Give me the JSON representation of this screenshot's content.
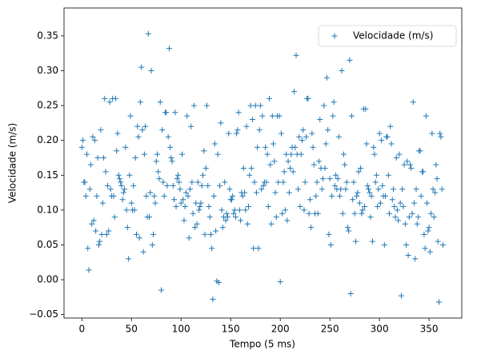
{
  "chart_data": {
    "type": "scatter",
    "xlabel": "Tempo (5 ms)",
    "ylabel": "Velocidade (m/s)",
    "legend": "upper right",
    "marker": "+",
    "xlim": [
      -18,
      383
    ],
    "ylim": [
      -0.055,
      0.39
    ],
    "xticks": [
      0,
      50,
      100,
      150,
      200,
      250,
      300,
      350
    ],
    "yticks": [
      {
        "value": -0.05,
        "label": "−0.05"
      },
      {
        "value": 0,
        "label": "0.00"
      },
      {
        "value": 0.05,
        "label": "0.05"
      },
      {
        "value": 0.1,
        "label": "0.10"
      },
      {
        "value": 0.15,
        "label": "0.15"
      },
      {
        "value": 0.2,
        "label": "0.20"
      },
      {
        "value": 0.25,
        "label": "0.25"
      },
      {
        "value": 0.3,
        "label": "0.30"
      },
      {
        "value": 0.35,
        "label": "0.35"
      }
    ],
    "series": [
      {
        "name": "Velocidade (m/s)",
        "color": "#1f77b4",
        "x": [
          0,
          1,
          2,
          3,
          4,
          5,
          6,
          7,
          8,
          9,
          10,
          11,
          12,
          13,
          14,
          15,
          16,
          17,
          18,
          19,
          20,
          21,
          22,
          23,
          24,
          25,
          26,
          27,
          28,
          29,
          30,
          31,
          32,
          33,
          34,
          35,
          36,
          37,
          38,
          39,
          40,
          41,
          42,
          43,
          44,
          45,
          46,
          47,
          48,
          49,
          50,
          51,
          52,
          53,
          54,
          55,
          56,
          57,
          58,
          59,
          60,
          61,
          62,
          63,
          64,
          65,
          66,
          67,
          68,
          69,
          70,
          71,
          72,
          73,
          74,
          75,
          76,
          77,
          78,
          79,
          80,
          81,
          82,
          83,
          84,
          85,
          86,
          87,
          88,
          89,
          90,
          91,
          92,
          93,
          94,
          95,
          96,
          97,
          98,
          99,
          100,
          101,
          102,
          103,
          104,
          105,
          106,
          107,
          108,
          109,
          110,
          111,
          112,
          113,
          114,
          115,
          116,
          117,
          118,
          119,
          120,
          121,
          122,
          123,
          124,
          125,
          126,
          127,
          128,
          129,
          130,
          131,
          132,
          133,
          134,
          135,
          136,
          137,
          138,
          139,
          140,
          141,
          142,
          143,
          144,
          145,
          146,
          147,
          148,
          149,
          150,
          151,
          152,
          153,
          154,
          155,
          156,
          157,
          158,
          159,
          160,
          161,
          162,
          163,
          164,
          165,
          166,
          167,
          168,
          169,
          170,
          171,
          172,
          173,
          174,
          175,
          176,
          177,
          178,
          179,
          180,
          181,
          182,
          183,
          184,
          185,
          186,
          187,
          188,
          189,
          190,
          191,
          192,
          193,
          194,
          195,
          196,
          197,
          198,
          199,
          200,
          201,
          202,
          203,
          204,
          205,
          206,
          207,
          208,
          209,
          210,
          211,
          212,
          213,
          214,
          215,
          216,
          217,
          218,
          219,
          220,
          221,
          222,
          223,
          224,
          225,
          226,
          227,
          228,
          229,
          230,
          231,
          232,
          233,
          234,
          235,
          236,
          237,
          238,
          239,
          240,
          241,
          242,
          243,
          244,
          245,
          246,
          247,
          248,
          249,
          250,
          251,
          252,
          253,
          254,
          255,
          256,
          257,
          258,
          259,
          260,
          261,
          262,
          263,
          264,
          265,
          266,
          267,
          268,
          269,
          270,
          271,
          272,
          273,
          274,
          275,
          276,
          277,
          278,
          279,
          280,
          281,
          282,
          283,
          284,
          285,
          286,
          287,
          288,
          289,
          290,
          291,
          292,
          293,
          294,
          295,
          296,
          297,
          298,
          299,
          300,
          301,
          302,
          303,
          304,
          305,
          306,
          307,
          308,
          309,
          310,
          311,
          312,
          313,
          314,
          315,
          316,
          317,
          318,
          319,
          320,
          321,
          322,
          323,
          324,
          325,
          326,
          327,
          328,
          329,
          330,
          331,
          332,
          333,
          334,
          335,
          336,
          337,
          338,
          339,
          340,
          341,
          342,
          343,
          344,
          345,
          346,
          347,
          348,
          349,
          350,
          351,
          352,
          353,
          354,
          355,
          356,
          357,
          358,
          359,
          360,
          361,
          362,
          363,
          364
        ],
        "values": [
          0.19,
          0.2,
          0.14,
          0.14,
          0.12,
          0.18,
          0.045,
          0.014,
          0.13,
          0.165,
          0.08,
          0.205,
          0.085,
          0.2,
          0.07,
          0.12,
          0.175,
          0.05,
          0.055,
          0.215,
          0.065,
          0.11,
          0.175,
          0.26,
          0.155,
          0.065,
          0.135,
          0.07,
          0.255,
          0.13,
          0.12,
          0.26,
          0.12,
          0.09,
          0.26,
          0.185,
          0.21,
          0.15,
          0.145,
          0.14,
          0.135,
          0.115,
          0.125,
          0.13,
          0.19,
          0.1,
          0.075,
          0.03,
          0.15,
          0.235,
          0.11,
          0.1,
          0.135,
          0.1,
          0.175,
          0.065,
          0.22,
          0.205,
          0.06,
          0.255,
          0.305,
          0.215,
          0.04,
          0.18,
          0.22,
          0.12,
          0.09,
          0.353,
          0.09,
          0.125,
          0.3,
          0.05,
          0.065,
          0.12,
          0.11,
          0.17,
          0.18,
          0.155,
          0.145,
          0.255,
          -0.015,
          0.215,
          0.14,
          0.12,
          0.24,
          0.24,
          0.135,
          0.205,
          0.332,
          0.19,
          0.175,
          0.17,
          0.135,
          0.115,
          0.24,
          0.105,
          0.145,
          0.15,
          0.14,
          0.13,
          0.11,
          0.18,
          0.115,
          0.085,
          0.105,
          0.125,
          0.235,
          0.12,
          0.06,
          0.13,
          0.22,
          0.14,
          0.095,
          0.25,
          0.075,
          0.11,
          0.08,
          0.14,
          0.1,
          0.105,
          0.11,
          0.135,
          0.15,
          0.185,
          0.065,
          0.16,
          0.25,
          0.135,
          0.105,
          0.09,
          0.065,
          0.045,
          -0.028,
          0.12,
          0.195,
          0.07,
          -0.002,
          0.18,
          -0.004,
          0.135,
          0.225,
          0.1,
          0.075,
          0.09,
          0.14,
          0.085,
          0.095,
          0.09,
          0.21,
          0.13,
          0.115,
          0.115,
          0.12,
          0.095,
          0.1,
          0.09,
          0.21,
          0.215,
          0.24,
          0.1,
          0.085,
          0.125,
          0.12,
          0.16,
          0.125,
          0.1,
          0.22,
          0.08,
          0.105,
          0.15,
          0.25,
          0.16,
          0.23,
          0.045,
          0.14,
          0.25,
          0.125,
          0.19,
          0.045,
          0.215,
          0.25,
          0.13,
          0.235,
          0.135,
          0.14,
          0.19,
          0.14,
          0.18,
          0.105,
          0.26,
          0.165,
          0.08,
          0.235,
          0.195,
          0.17,
          0.125,
          0.09,
          0.235,
          0.14,
          0.235,
          -0.003,
          0.21,
          0.095,
          0.14,
          0.155,
          0.1,
          0.18,
          0.085,
          0.17,
          0.125,
          0.16,
          0.18,
          0.19,
          0.155,
          0.27,
          0.19,
          0.322,
          0.18,
          0.13,
          0.205,
          0.105,
          0.18,
          0.2,
          0.215,
          0.1,
          0.14,
          0.205,
          0.26,
          0.26,
          0.095,
          0.115,
          0.075,
          0.21,
          0.19,
          0.165,
          0.095,
          0.12,
          0.14,
          0.095,
          0.17,
          0.23,
          0.16,
          0.13,
          0.145,
          0.25,
          0.16,
          0.195,
          0.29,
          0.215,
          0.065,
          0.145,
          0.05,
          0.12,
          0.235,
          0.255,
          0.135,
          0.15,
          0.13,
          0.145,
          0.205,
          0.12,
          0.13,
          0.3,
          0.095,
          0.18,
          0.165,
          0.13,
          0.14,
          0.075,
          0.07,
          0.315,
          -0.02,
          0.235,
          0.115,
          0.14,
          0.095,
          0.055,
          0.12,
          0.125,
          0.155,
          0.11,
          0.16,
          0.095,
          0.1,
          0.245,
          0.105,
          0.245,
          0.195,
          0.135,
          0.13,
          0.125,
          0.09,
          0.12,
          0.055,
          0.19,
          0.18,
          0.14,
          0.15,
          0.105,
          0.13,
          0.21,
          0.11,
          0.2,
          0.135,
          0.12,
          0.05,
          0.12,
          0.205,
          0.205,
          0.15,
          0.095,
          0.22,
          0.195,
          0.115,
          0.13,
          0.105,
          0.09,
          0.175,
          0.1,
          0.085,
          0.18,
          0.11,
          -0.023,
          0.13,
          0.105,
          0.165,
          0.08,
          0.05,
          0.17,
          0.035,
          0.09,
          0.165,
          0.16,
          0.095,
          0.255,
          0.11,
          0.03,
          0.13,
          0.08,
          0.09,
          0.185,
          0.185,
          0.12,
          0.155,
          0.155,
          0.065,
          0.045,
          0.235,
          0.11,
          0.07,
          0.075,
          0.04,
          0.095,
          0.21,
          0.13,
          0.09,
          0.125,
          0.165,
          0.145,
          0.055,
          -0.032,
          0.21,
          0.205,
          0.13,
          0.05
        ]
      }
    ]
  }
}
